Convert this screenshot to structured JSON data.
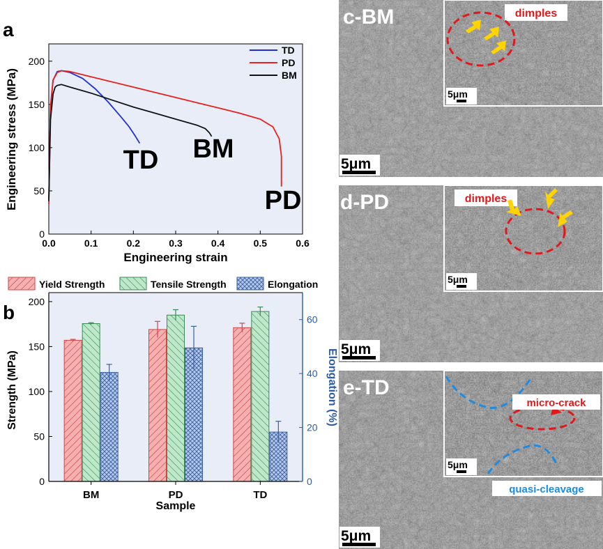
{
  "panels": {
    "a_label": "a",
    "b_label": "b",
    "c_label": "c-BM",
    "d_label": "d-PD",
    "e_label": "e-TD"
  },
  "sem": {
    "scale_main": "5μm",
    "scale_inset": "5μm",
    "c_annotation": "dimples",
    "d_annotation": "dimples",
    "e_annotation_red": "micro-crack",
    "e_annotation_blue": "quasi-cleavage"
  },
  "colors": {
    "TD": "#1f2fd6",
    "PD": "#e8201c",
    "BM": "#111111",
    "plot_bg": "#e8edf7",
    "yield": "#f28c8c",
    "tensile": "#8fd4a8",
    "elong": "#8fb0e0",
    "elong_axis": "#2a5ca8",
    "annot_red": "#e0191c",
    "annot_blue": "#1f8be0",
    "arrow": "#ffd400"
  },
  "chart_data": [
    {
      "type": "line",
      "title": "",
      "xlabel": "Engineering strain",
      "ylabel": "Engineering stress (MPa)",
      "xlim": [
        0,
        0.6
      ],
      "ylim": [
        0,
        220
      ],
      "xticks": [
        "0.0",
        "0.1",
        "0.2",
        "0.3",
        "0.4",
        "0.5",
        "0.6"
      ],
      "yticks": [
        "0",
        "50",
        "100",
        "150",
        "200"
      ],
      "legend": "top-right",
      "series": [
        {
          "name": "TD",
          "x": [
            0,
            0.004,
            0.01,
            0.02,
            0.03,
            0.05,
            0.08,
            0.11,
            0.14,
            0.17,
            0.19,
            0.205,
            0.215
          ],
          "y": [
            40,
            145,
            178,
            188,
            189,
            187,
            180,
            168,
            153,
            136,
            124,
            113,
            105
          ]
        },
        {
          "name": "PD",
          "x": [
            0,
            0.004,
            0.01,
            0.02,
            0.03,
            0.05,
            0.1,
            0.15,
            0.2,
            0.25,
            0.3,
            0.35,
            0.4,
            0.45,
            0.5,
            0.53,
            0.545,
            0.55,
            0.55
          ],
          "y": [
            35,
            148,
            178,
            187,
            189,
            188,
            182,
            176,
            170,
            164,
            158,
            152,
            146,
            140,
            133,
            124,
            110,
            90,
            55
          ]
        },
        {
          "name": "BM",
          "x": [
            0,
            0.004,
            0.01,
            0.015,
            0.02,
            0.03,
            0.05,
            0.1,
            0.15,
            0.2,
            0.25,
            0.3,
            0.35,
            0.37,
            0.38,
            0.385
          ],
          "y": [
            38,
            132,
            162,
            170,
            172,
            173,
            170,
            163,
            155,
            147,
            140,
            133,
            126,
            122,
            117,
            113
          ]
        }
      ],
      "annotations": [
        "TD",
        "BM",
        "PD"
      ]
    },
    {
      "type": "bar",
      "title": "",
      "xlabel": "Sample",
      "ylabel": "Strength (MPa)",
      "y2label": "Elongation (%)",
      "categories": [
        "BM",
        "PD",
        "TD"
      ],
      "ylim": [
        0,
        210
      ],
      "y2lim": [
        0,
        70
      ],
      "yticks": [
        "0",
        "50",
        "100",
        "150",
        "200"
      ],
      "y2ticks": [
        "0",
        "20",
        "40",
        "60"
      ],
      "legend": "top",
      "series": [
        {
          "name": "Yield Strength",
          "axis": "left",
          "values": [
            157,
            169,
            171
          ],
          "errors": [
            1,
            9,
            5
          ]
        },
        {
          "name": "Tensile Strength",
          "axis": "left",
          "values": [
            175.5,
            185,
            189
          ],
          "errors": [
            1,
            6,
            5
          ]
        },
        {
          "name": "Elongation",
          "axis": "right",
          "values": [
            40.4,
            49.5,
            18.3
          ],
          "errors": [
            3,
            8,
            4
          ]
        }
      ]
    }
  ]
}
